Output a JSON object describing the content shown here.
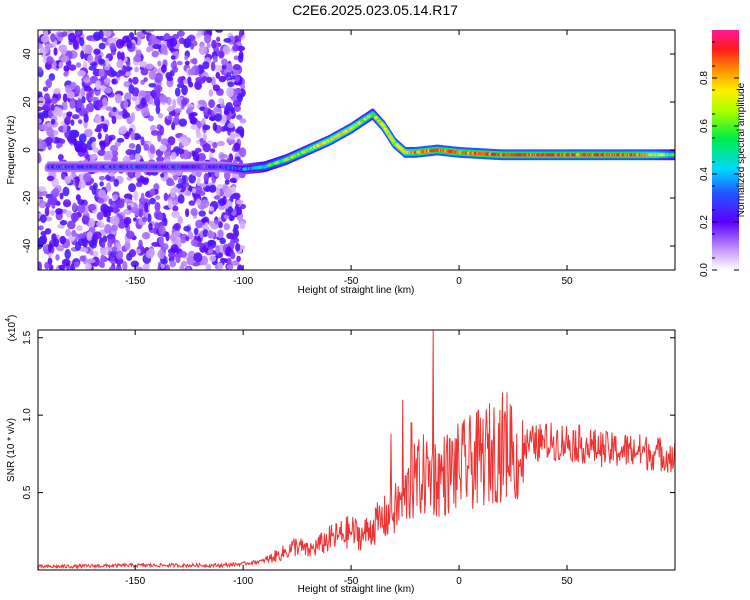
{
  "title": "C2E6.2025.023.05.14.R17",
  "colors": {
    "line": "#ee3333",
    "frame": "#000000"
  },
  "chart_data": [
    {
      "type": "heatmap",
      "xlabel": "Height of straight line (km)",
      "ylabel": "Frequency (Hz)",
      "xlim": [
        -195,
        100
      ],
      "ylim": [
        -50,
        50
      ],
      "xticks": [
        -150,
        -100,
        -50,
        0,
        50
      ],
      "yticks": [
        -40,
        -20,
        0,
        20,
        40
      ],
      "xtick_labels": [
        "-150",
        "-100",
        "-50",
        "0",
        "50"
      ],
      "ytick_labels": [
        "-40",
        "-20",
        "0",
        "20",
        "40"
      ],
      "colorbar": {
        "label": "Normalized spectral amplitude",
        "range": [
          0,
          1
        ],
        "ticks": [
          0.0,
          0.2,
          0.4,
          0.6,
          0.8
        ],
        "tick_labels": [
          "0.0",
          "0.2",
          "0.4",
          "0.6",
          "0.8"
        ],
        "colormap": "rainbow (white-violet-blue-cyan-green-yellow-red-magenta)"
      },
      "ridge": {
        "x": [
          -190,
          -160,
          -130,
          -110,
          -100,
          -90,
          -80,
          -70,
          -60,
          -50,
          -45,
          -40,
          -35,
          -30,
          -25,
          -20,
          -10,
          0,
          20,
          50,
          80,
          100
        ],
        "y": [
          -7,
          -7,
          -7,
          -7,
          -8,
          -7,
          -4,
          0,
          4,
          9,
          12,
          15,
          10,
          3,
          -1,
          -1,
          0,
          -1,
          -2,
          -2,
          -2,
          -2
        ],
        "amplitude": [
          0.25,
          0.25,
          0.25,
          0.25,
          0.35,
          0.5,
          0.6,
          0.65,
          0.7,
          0.7,
          0.65,
          0.6,
          0.7,
          0.7,
          0.75,
          0.8,
          0.9,
          0.85,
          0.9,
          0.9,
          0.9,
          0.55
        ]
      },
      "noise_region_x": [
        -195,
        -100
      ]
    },
    {
      "type": "line",
      "xlabel": "Height of straight line (km)",
      "ylabel": "SNR (10 * v/v)",
      "y_multiplier_label": "(x10",
      "y_multiplier_exponent": "4",
      "y_multiplier_close": ")",
      "xlim": [
        -195,
        100
      ],
      "ylim": [
        0,
        1.55
      ],
      "xticks": [
        -150,
        -100,
        -50,
        0,
        50
      ],
      "yticks": [
        0.5,
        1.0,
        1.5
      ],
      "xtick_labels": [
        "-150",
        "-100",
        "-50",
        "0",
        "50"
      ],
      "ytick_labels": [
        "0.5",
        "1.0",
        "1.5"
      ],
      "series": [
        {
          "x": [
            -195,
            -150,
            -110,
            -100,
            -90,
            -80,
            -75,
            -70,
            -60,
            -50,
            -45,
            -40,
            -35,
            -30,
            -25,
            -20,
            -15,
            -10,
            0,
            10,
            20,
            30,
            40,
            50,
            60,
            70,
            80,
            90,
            100
          ],
          "y": [
            0.02,
            0.03,
            0.03,
            0.04,
            0.06,
            0.12,
            0.16,
            0.12,
            0.2,
            0.25,
            0.22,
            0.28,
            0.33,
            0.38,
            0.48,
            0.58,
            0.62,
            0.6,
            0.66,
            0.72,
            0.8,
            0.85,
            0.88,
            0.88,
            0.85,
            0.82,
            0.82,
            0.8,
            0.78
          ],
          "spikes_x": [
            -31.5,
            -26,
            -22,
            -12
          ],
          "spikes_y": [
            0.88,
            1.1,
            0.95,
            1.55
          ]
        }
      ]
    }
  ]
}
